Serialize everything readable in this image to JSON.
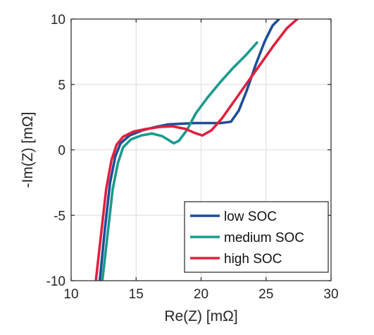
{
  "chart_data": {
    "type": "line",
    "title": "",
    "xlabel": "Re(Z) [mΩ]",
    "ylabel": "-Im(Z) [mΩ]",
    "xlim": [
      10,
      30
    ],
    "ylim": [
      -10,
      10
    ],
    "xticks": [
      10,
      15,
      20,
      25,
      30
    ],
    "yticks": [
      -10,
      -5,
      0,
      5,
      10
    ],
    "grid": true,
    "legend_position": "bottom-right",
    "series": [
      {
        "name": "low SOC",
        "color": "#1f4e96",
        "x": [
          12.2,
          12.6,
          13.0,
          13.4,
          13.8,
          14.5,
          15.5,
          16.5,
          17.5,
          18.5,
          19.5,
          20.5,
          21.5,
          22.3,
          22.9,
          23.5,
          24.2,
          24.9,
          25.5,
          26.0
        ],
        "y": [
          -10.0,
          -6.0,
          -2.5,
          -0.5,
          0.5,
          1.1,
          1.5,
          1.75,
          1.95,
          2.0,
          2.05,
          2.05,
          2.05,
          2.15,
          3.0,
          4.5,
          6.5,
          8.3,
          9.5,
          10.0
        ]
      },
      {
        "name": "medium SOC",
        "color": "#1a9a8e",
        "x": [
          12.4,
          12.8,
          13.2,
          13.6,
          14.0,
          14.6,
          15.4,
          16.2,
          17.0,
          17.5,
          17.9,
          18.3,
          18.9,
          19.6,
          20.5,
          21.5,
          22.5,
          23.5,
          24.3
        ],
        "y": [
          -10.0,
          -6.5,
          -3.0,
          -1.0,
          0.2,
          0.8,
          1.1,
          1.25,
          1.05,
          0.75,
          0.5,
          0.7,
          1.5,
          2.8,
          4.0,
          5.2,
          6.3,
          7.3,
          8.2
        ]
      },
      {
        "name": "high SOC",
        "color": "#e0203f",
        "x": [
          11.9,
          12.3,
          12.7,
          13.1,
          13.5,
          14.0,
          14.8,
          15.8,
          16.8,
          17.8,
          18.8,
          19.5,
          20.1,
          20.8,
          21.6,
          22.6,
          23.6,
          24.6,
          25.6,
          26.6,
          27.4
        ],
        "y": [
          -10.0,
          -6.5,
          -3.0,
          -0.8,
          0.4,
          1.0,
          1.4,
          1.6,
          1.75,
          1.8,
          1.6,
          1.3,
          1.1,
          1.5,
          2.4,
          3.8,
          5.2,
          6.6,
          8.0,
          9.3,
          10.0
        ]
      }
    ]
  }
}
